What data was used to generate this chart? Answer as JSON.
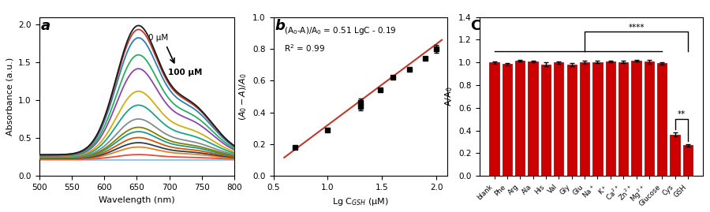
{
  "panel_a": {
    "xlabel": "Wavelength (nm)",
    "ylabel": "Absorbance (a.u.)",
    "xlim": [
      500,
      800
    ],
    "ylim": [
      0.0,
      2.1
    ],
    "yticks": [
      0.0,
      0.5,
      1.0,
      1.5,
      2.0
    ],
    "xticks": [
      500,
      550,
      600,
      650,
      700,
      750,
      800
    ],
    "label": "a",
    "annotation_top": "0 μM",
    "annotation_bot": "100 μM",
    "peak_wl": 650,
    "n_curves": 14,
    "peak_heights": [
      1.58,
      1.48,
      1.27,
      1.1,
      0.82,
      0.65,
      0.48,
      0.38,
      0.33,
      0.26,
      0.2,
      0.15,
      0.06,
      0.0
    ],
    "colors": [
      "#c0392b",
      "#2980b9",
      "#27ae60",
      "#8e44ad",
      "#d4ac0d",
      "#17a589",
      "#7f8c8d",
      "#808000",
      "#1a9988",
      "#d35400",
      "#2c3e50",
      "#e67e22",
      "#e74c3c",
      "#85c1e9"
    ],
    "baseline": 0.28,
    "shoulder_ratio": 0.4,
    "peak_sigma": 32,
    "shoulder_sigma": 38,
    "shoulder_wl": 730,
    "top_color": "#1a1a1a",
    "top_peak": 1.63,
    "top_shoulder": 0.65
  },
  "panel_b": {
    "xlabel": "Lg C$_{GSH}$ (μM)",
    "ylabel": "$(A_0-A)/A_0$",
    "xlim": [
      0.5,
      2.1
    ],
    "ylim": [
      0.0,
      1.0
    ],
    "xticks": [
      0.5,
      1.0,
      1.5,
      2.0
    ],
    "yticks": [
      0.0,
      0.2,
      0.4,
      0.6,
      0.8,
      1.0
    ],
    "label": "b",
    "equation": "(A$_0$-A)/A$_0$ = 0.51 LgC - 0.19",
    "r2": "R$^2$ = 0.99",
    "scatter_x": [
      0.7,
      1.0,
      1.3,
      1.3,
      1.48,
      1.6,
      1.75,
      1.9,
      2.0
    ],
    "scatter_y": [
      0.18,
      0.29,
      0.46,
      0.44,
      0.54,
      0.62,
      0.67,
      0.74,
      0.8
    ],
    "scatter_yerr": [
      0.0,
      0.0,
      0.025,
      0.025,
      0.0,
      0.0,
      0.0,
      0.0,
      0.025
    ],
    "fit_slope": 0.51,
    "fit_intercept": -0.19,
    "fit_color": "#c0392b"
  },
  "panel_c": {
    "xlabel": "",
    "ylabel": "A/A$_0$",
    "ylim": [
      0.0,
      1.4
    ],
    "yticks": [
      0.0,
      0.2,
      0.4,
      0.6,
      0.8,
      1.0,
      1.2,
      1.4
    ],
    "label": "C",
    "categories": [
      "blank",
      "Phe",
      "Arg",
      "Ala",
      "His",
      "Val",
      "Gly",
      "Glu",
      "Na$^+$",
      "K$^+$",
      "Ca$^{2+}$",
      "Zn$^{2+}$",
      "Mg$^{2+}$",
      "Glucose",
      "Cys",
      "GSH"
    ],
    "values": [
      1.0,
      0.984,
      1.015,
      1.008,
      0.983,
      1.0,
      0.982,
      1.0,
      1.003,
      1.008,
      1.003,
      1.015,
      1.005,
      0.992,
      0.365,
      0.27
    ],
    "errors": [
      0.01,
      0.01,
      0.01,
      0.01,
      0.015,
      0.01,
      0.015,
      0.015,
      0.01,
      0.01,
      0.01,
      0.01,
      0.015,
      0.01,
      0.018,
      0.01
    ],
    "bar_color": "#cc0000",
    "bar_edge_color": "#880000",
    "horiz_line_x1": 0,
    "horiz_line_x2": 13,
    "horiz_line_y": 1.1,
    "sig1_x1": 7,
    "sig1_x2": 15,
    "sig1_bracket_y": 1.27,
    "sig1_label": "****",
    "sig2_x1": 14,
    "sig2_x2": 15,
    "sig2_bracket_y": 0.5,
    "sig2_label": "**"
  }
}
